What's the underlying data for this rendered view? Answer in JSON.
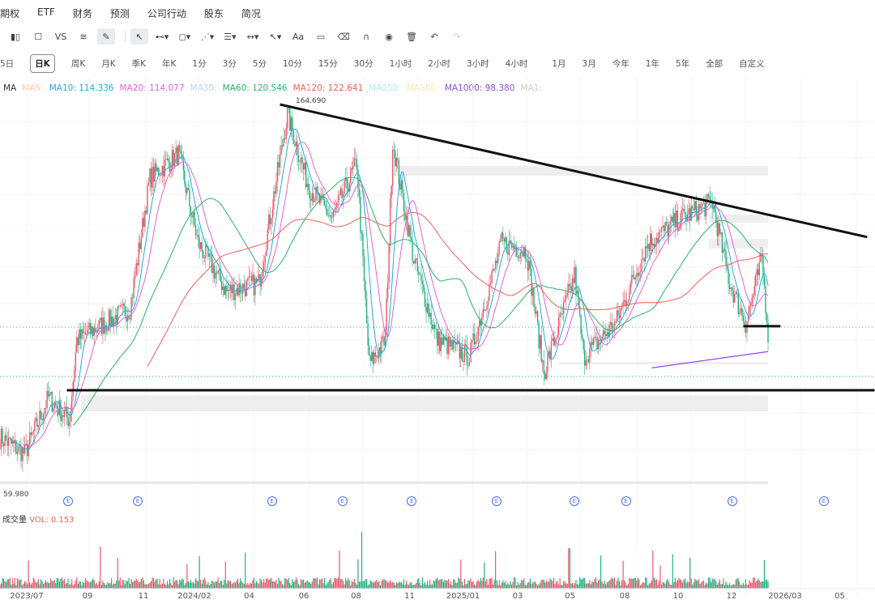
{
  "menu": [
    "期权",
    "ETF",
    "财务",
    "预测",
    "公司行动",
    "股东",
    "简况"
  ],
  "toolbar": {
    "vs": "VS",
    "text": "Aa"
  },
  "periods": [
    "5日",
    "日K",
    "周K",
    "月K",
    "季K",
    "年K",
    "1分",
    "3分",
    "5分",
    "10分",
    "15分",
    "30分",
    "1小时",
    "2小时",
    "3小时",
    "4小时",
    "1月",
    "3月",
    "今年",
    "1年",
    "5年",
    "全部",
    "自定义"
  ],
  "selected_period": "日K",
  "ma_legend": [
    {
      "label": "MA",
      "color": "#333333"
    },
    {
      "label": "MA5:",
      "color": "#f9c9a8"
    },
    {
      "label": "MA10: 114.336",
      "color": "#29a8e0"
    },
    {
      "label": "MA20: 114.077",
      "color": "#e066d8"
    },
    {
      "label": "MA30:",
      "color": "#b9d3f5"
    },
    {
      "label": "MA60: 120.546",
      "color": "#27b36a"
    },
    {
      "label": "MA120: 122.641",
      "color": "#f0605a"
    },
    {
      "label": "MA250:",
      "color": "#a8eef0"
    },
    {
      "label": "MA500:",
      "color": "#fde3b5"
    },
    {
      "label": "MA1000: 98.380",
      "color": "#8a4cf0"
    },
    {
      "label": "MA1:",
      "color": "#cccccc"
    }
  ],
  "volume": {
    "label": "成交量",
    "value": "VOL: 0.153"
  },
  "colors": {
    "up": "#f0566a",
    "down": "#20b27f",
    "earnings": "#4a6cf7"
  },
  "earnings_marker": "E",
  "chart_data": {
    "type": "candlestick",
    "price_range": [
      59.98,
      164.69
    ],
    "high_label": "164.690",
    "low_label": "59.980",
    "total_days": 620,
    "close_keypoints": [
      [
        0,
        75.4
      ],
      [
        20,
        71
      ],
      [
        39,
        86
      ],
      [
        56,
        80
      ],
      [
        62,
        101.5
      ],
      [
        85,
        106
      ],
      [
        105,
        110
      ],
      [
        121,
        145
      ],
      [
        144,
        151.4
      ],
      [
        160,
        127.5
      ],
      [
        183,
        114.5
      ],
      [
        209,
        116.7
      ],
      [
        232,
        162
      ],
      [
        249,
        142.8
      ],
      [
        268,
        134
      ],
      [
        288,
        149
      ],
      [
        298,
        95
      ],
      [
        311,
        101.5
      ],
      [
        317,
        154.7
      ],
      [
        334,
        123
      ],
      [
        353,
        101.5
      ],
      [
        379,
        97
      ],
      [
        405,
        127.5
      ],
      [
        425,
        125.4
      ],
      [
        439,
        92.8
      ],
      [
        464,
        118.9
      ],
      [
        471,
        97
      ],
      [
        497,
        106
      ],
      [
        523,
        127.5
      ],
      [
        549,
        134
      ],
      [
        575,
        138.4
      ],
      [
        589,
        116.7
      ],
      [
        602,
        106
      ],
      [
        615,
        123
      ],
      [
        620,
        103.7
      ]
    ],
    "trendline": {
      "from": [
        226,
        164.69
      ],
      "to": [
        700,
        129.1
      ]
    },
    "support_line": {
      "from": [
        54,
        88.0
      ],
      "to": [
        706,
        88.0
      ]
    },
    "short_line": {
      "from": [
        600,
        105.2
      ],
      "to": [
        630,
        105.2
      ]
    },
    "ma1000": {
      "from": [
        526,
        94
      ],
      "to": [
        620,
        98.38
      ]
    },
    "earnings_days": [
      58,
      117,
      231,
      291,
      350,
      422,
      488,
      532,
      622,
      700
    ],
    "x_ticks": [
      {
        "label": "2023/07",
        "day": 22
      },
      {
        "label": "09",
        "day": 72
      },
      {
        "label": "11",
        "day": 118
      },
      {
        "label": "2024/02",
        "day": 160
      },
      {
        "label": "04",
        "day": 205
      },
      {
        "label": "06",
        "day": 250
      },
      {
        "label": "08",
        "day": 293
      },
      {
        "label": "11",
        "day": 337
      },
      {
        "label": "2025/01",
        "day": 381
      },
      {
        "label": "03",
        "day": 426
      },
      {
        "label": "05",
        "day": 469
      },
      {
        "label": "08",
        "day": 514
      },
      {
        "label": "10",
        "day": 558
      },
      {
        "label": "12",
        "day": 602
      },
      {
        "label": "2026/03",
        "day": 646
      },
      {
        "label": "05",
        "day": 691
      }
    ]
  }
}
